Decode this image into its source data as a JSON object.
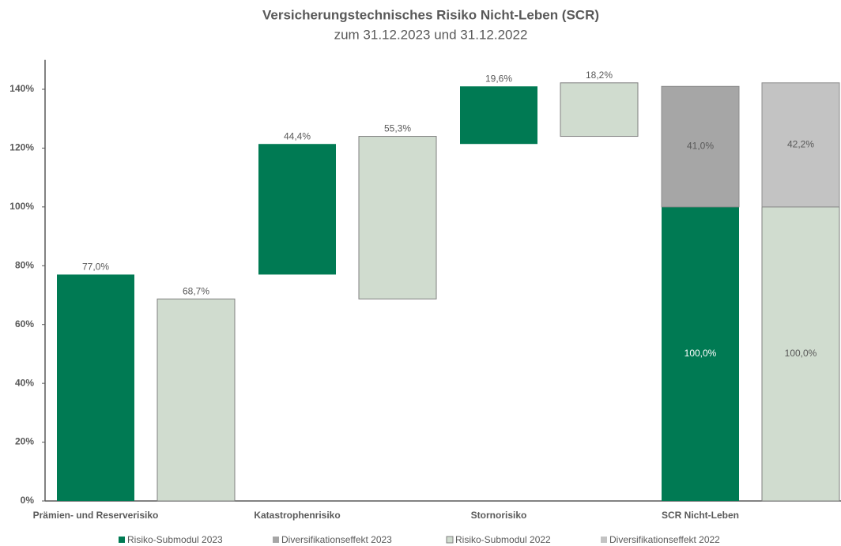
{
  "chart_data": {
    "type": "waterfall",
    "title": "Versicherungstechnisches Risiko Nicht-Leben (SCR)",
    "subtitle": "zum 31.12.2023 und 31.12.2022",
    "categories": [
      "Prämien- und Reserverisiko",
      "Katastrophenrisiko",
      "Stornorisiko",
      "SCR Nicht-Leben"
    ],
    "series": [
      {
        "name": "Risiko-Submodul 2023",
        "color": "#007a53",
        "values": [
          77.0,
          44.4,
          19.6,
          100.0
        ],
        "value_labels": [
          "77,0%",
          "44,4%",
          "19,6%",
          "100,0%"
        ]
      },
      {
        "name": "Diversifikationseffekt 2023",
        "color": "#a6a6a6",
        "values": [
          null,
          null,
          null,
          41.0
        ],
        "value_labels": [
          null,
          null,
          null,
          "41,0%"
        ]
      },
      {
        "name": "Risiko-Submodul 2022",
        "color": "#d0dccf",
        "values": [
          68.7,
          55.3,
          18.2,
          100.0
        ],
        "value_labels": [
          "68,7%",
          "55,3%",
          "18,2%",
          "100,0%"
        ]
      },
      {
        "name": "Diversifikationseffekt 2022",
        "color": "#c3c3c3",
        "values": [
          null,
          null,
          null,
          42.2
        ],
        "value_labels": [
          null,
          null,
          null,
          "42,2%"
        ]
      }
    ],
    "ylim": [
      0,
      150
    ],
    "yticks": [
      {
        "value": 0,
        "label": "0%"
      },
      {
        "value": 20,
        "label": "20%"
      },
      {
        "value": 40,
        "label": "40%"
      },
      {
        "value": 60,
        "label": "60%"
      },
      {
        "value": 80,
        "label": "80%"
      },
      {
        "value": 100,
        "label": "100%"
      },
      {
        "value": 120,
        "label": "120%"
      },
      {
        "value": 140,
        "label": "140%"
      }
    ]
  }
}
